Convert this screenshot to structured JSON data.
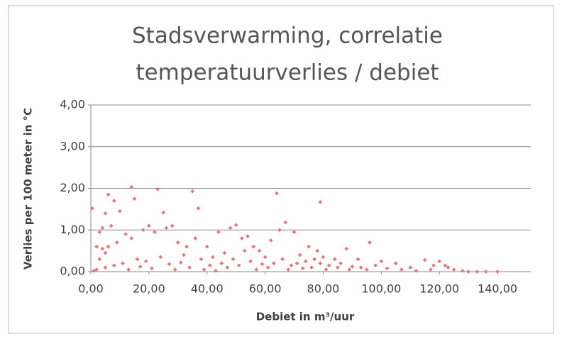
{
  "chart_data": {
    "type": "scatter",
    "title_lines": [
      "Stadsverwarming, correlatie",
      "temperatuurverlies / debiet"
    ],
    "x_label": "Debiet in m³/uur",
    "y_label": "Verlies per 100 meter in °C",
    "color": "#f0707a",
    "grid": true,
    "xlim": [
      0,
      150
    ],
    "xticks": [
      {
        "value": 0,
        "label": "0,00"
      },
      {
        "value": 20,
        "label": "20,00"
      },
      {
        "value": 40,
        "label": "40,00"
      },
      {
        "value": 60,
        "label": "60,00"
      },
      {
        "value": 80,
        "label": "80,00"
      },
      {
        "value": 100,
        "label": "100,00"
      },
      {
        "value": 120,
        "label": "120,00"
      },
      {
        "value": 140,
        "label": "140,00"
      }
    ],
    "ylim": [
      0,
      4
    ],
    "yticks": [
      {
        "value": 0,
        "label": "0,00"
      },
      {
        "value": 1,
        "label": "1,00"
      },
      {
        "value": 2,
        "label": "2,00"
      },
      {
        "value": 3,
        "label": "3,00"
      },
      {
        "value": 4,
        "label": "4,00"
      }
    ],
    "x": [
      0.5,
      14,
      23,
      35,
      64,
      79,
      6,
      8,
      10,
      15,
      25,
      37,
      5,
      3,
      4,
      7,
      9,
      4,
      5,
      6,
      2,
      3,
      12,
      14,
      18,
      20,
      22,
      26,
      28,
      30,
      33,
      36,
      40,
      44,
      48,
      50,
      52,
      54,
      56,
      58,
      62,
      65,
      67,
      70,
      72,
      75,
      78,
      80,
      84,
      88,
      92,
      96,
      100,
      105,
      110,
      115,
      118,
      120,
      122,
      125,
      130,
      133,
      136,
      140,
      1,
      2,
      5,
      8,
      11,
      13,
      16,
      17,
      19,
      21,
      24,
      27,
      29,
      31,
      32,
      34,
      38,
      39,
      41,
      42,
      43,
      45,
      46,
      47,
      49,
      51,
      53,
      55,
      57,
      59,
      60,
      61,
      63,
      66,
      68,
      69,
      71,
      73,
      74,
      76,
      77,
      79,
      81,
      82,
      85,
      86,
      89,
      90,
      93,
      95,
      98,
      102,
      107,
      112,
      117,
      123,
      128
    ],
    "values": [
      1.52,
      2.03,
      1.98,
      1.93,
      1.88,
      1.67,
      1.85,
      1.7,
      1.45,
      1.75,
      1.42,
      1.52,
      1.4,
      0.95,
      1.05,
      1.1,
      0.7,
      0.55,
      0.45,
      0.6,
      0.6,
      0.3,
      0.9,
      0.8,
      1.0,
      1.1,
      0.95,
      1.05,
      1.1,
      0.7,
      0.6,
      0.8,
      0.6,
      0.95,
      1.05,
      1.12,
      0.8,
      0.85,
      0.6,
      0.5,
      0.75,
      1.0,
      1.18,
      0.95,
      0.4,
      0.6,
      0.5,
      0.35,
      0.3,
      0.55,
      0.3,
      0.7,
      0.25,
      0.2,
      0.1,
      0.28,
      0.15,
      0.25,
      0.15,
      0.05,
      0,
      0,
      0,
      0,
      0.02,
      0.05,
      0.1,
      0.15,
      0.2,
      0.05,
      0.3,
      0.12,
      0.25,
      0.08,
      0.35,
      0.18,
      0.05,
      0.22,
      0.4,
      0.1,
      0.3,
      0.05,
      0.15,
      0.35,
      0.02,
      0.2,
      0.45,
      0.1,
      0.3,
      0.15,
      0.5,
      0.25,
      0.05,
      0.18,
      0.35,
      0.1,
      0.2,
      0.3,
      0.05,
      0.15,
      0.2,
      0.08,
      0.25,
      0.1,
      0.3,
      0.2,
      0.05,
      0.15,
      0.1,
      0.2,
      0.05,
      0.12,
      0.1,
      0.05,
      0.15,
      0.08,
      0.05,
      0.02,
      0.05,
      0.1,
      0.02
    ]
  }
}
